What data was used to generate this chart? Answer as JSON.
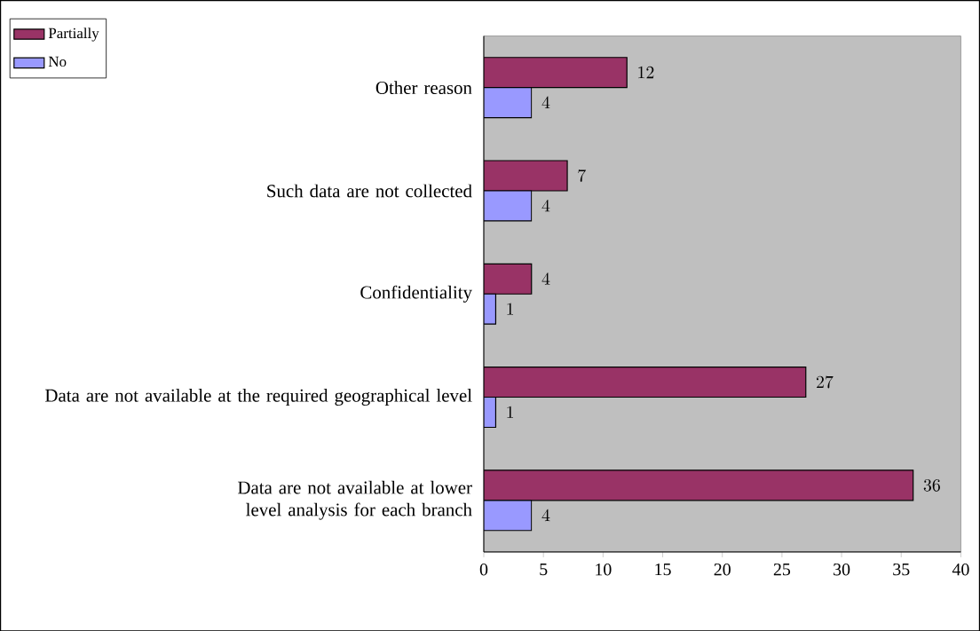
{
  "chart_data": {
    "type": "bar",
    "orientation": "horizontal",
    "categories": [
      "Other reason",
      "Such data are not collected",
      "Confidentiality",
      "Data are not available at the required geographical level",
      "Data are not available at lower level analysis for each branch"
    ],
    "series": [
      {
        "name": "Partially",
        "color": "#993366",
        "values": [
          12,
          7,
          4,
          27,
          36
        ]
      },
      {
        "name": "No",
        "color": "#9999ff",
        "values": [
          4,
          4,
          1,
          1,
          4
        ]
      }
    ],
    "xlim": [
      0,
      40
    ],
    "xticks": [
      0,
      5,
      10,
      15,
      20,
      25,
      30,
      35,
      40
    ],
    "data_labels": true,
    "legend": "top left",
    "grid": false
  }
}
